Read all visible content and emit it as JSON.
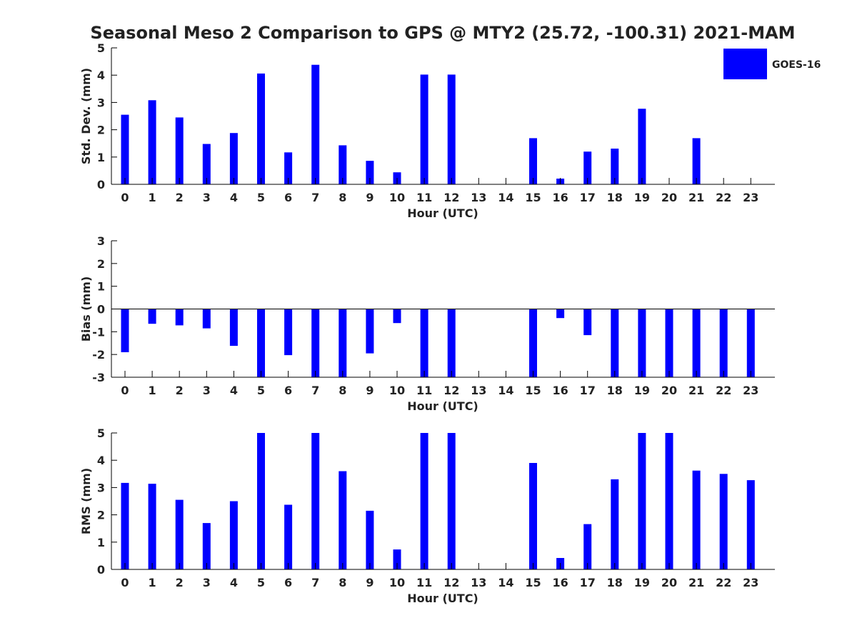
{
  "title": "Seasonal Meso 2 Comparison to GPS @ MTY2 (25.72, -100.31) 2021-MAM",
  "legend": {
    "label": "GOES-16",
    "placement": "top-right"
  },
  "colors": {
    "bar": "#0000ff",
    "axis": "#000000",
    "text": "#222222"
  },
  "chart_data": [
    {
      "type": "bar",
      "categories": [
        "0",
        "1",
        "2",
        "3",
        "4",
        "5",
        "6",
        "7",
        "8",
        "9",
        "10",
        "11",
        "12",
        "13",
        "14",
        "15",
        "16",
        "17",
        "18",
        "19",
        "20",
        "21",
        "22",
        "23"
      ],
      "series": [
        {
          "name": "GOES-16",
          "values": [
            2.55,
            3.08,
            2.45,
            1.48,
            1.88,
            4.06,
            1.17,
            4.38,
            1.43,
            0.86,
            0.44,
            4.02,
            4.02,
            null,
            null,
            1.69,
            0.21,
            1.2,
            1.31,
            2.77,
            null,
            1.69,
            null,
            null
          ]
        }
      ],
      "xlabel": "Hour (UTC)",
      "ylabel": "Std. Dev. (mm)",
      "ylim": [
        0,
        5
      ],
      "yticks": [
        0,
        1,
        2,
        3,
        4,
        5
      ],
      "grid": false
    },
    {
      "type": "bar",
      "categories": [
        "0",
        "1",
        "2",
        "3",
        "4",
        "5",
        "6",
        "7",
        "8",
        "9",
        "10",
        "11",
        "12",
        "13",
        "14",
        "15",
        "16",
        "17",
        "18",
        "19",
        "20",
        "21",
        "22",
        "23"
      ],
      "series": [
        {
          "name": "GOES-16",
          "values": [
            -1.9,
            -0.65,
            -0.72,
            -0.85,
            -1.62,
            -3,
            -2.03,
            -3,
            -3,
            -1.95,
            -0.62,
            -3,
            -3,
            null,
            null,
            -3,
            -0.4,
            -1.15,
            -3,
            -3,
            -3,
            -3,
            -3,
            -3
          ]
        }
      ],
      "xlabel": "Hour (UTC)",
      "ylabel": "Bias (mm)",
      "ylim": [
        -3,
        3
      ],
      "yticks": [
        -3,
        -2,
        -1,
        0,
        1,
        2,
        3
      ],
      "grid": false
    },
    {
      "type": "bar",
      "categories": [
        "0",
        "1",
        "2",
        "3",
        "4",
        "5",
        "6",
        "7",
        "8",
        "9",
        "10",
        "11",
        "12",
        "13",
        "14",
        "15",
        "16",
        "17",
        "18",
        "19",
        "20",
        "21",
        "22",
        "23"
      ],
      "series": [
        {
          "name": "GOES-16",
          "values": [
            3.17,
            3.14,
            2.55,
            1.7,
            2.5,
            5,
            2.37,
            5,
            3.6,
            2.15,
            0.73,
            5,
            5,
            null,
            null,
            3.9,
            0.42,
            1.66,
            3.3,
            5,
            5,
            3.62,
            3.5,
            3.27
          ]
        }
      ],
      "xlabel": "Hour (UTC)",
      "ylabel": "RMS (mm)",
      "ylim": [
        0,
        5
      ],
      "yticks": [
        0,
        1,
        2,
        3,
        4,
        5
      ],
      "grid": false
    }
  ]
}
